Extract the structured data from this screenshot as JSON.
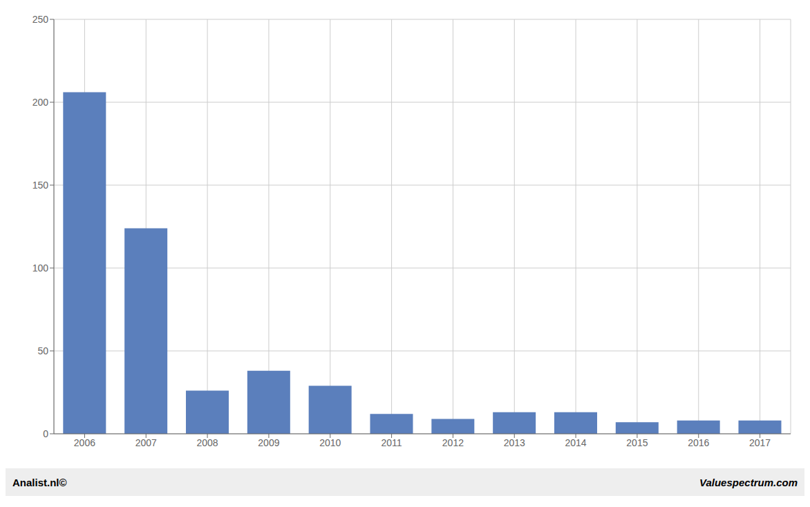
{
  "chart_data": {
    "type": "bar",
    "categories": [
      "2006",
      "2007",
      "2008",
      "2009",
      "2010",
      "2011",
      "2012",
      "2013",
      "2014",
      "2015",
      "2016",
      "2017"
    ],
    "values": [
      206,
      124,
      26,
      38,
      29,
      12,
      9,
      13,
      13,
      7,
      8,
      8
    ],
    "color": "#5b7fbc",
    "ylim": [
      0,
      250
    ],
    "yticks": [
      0,
      50,
      100,
      150,
      200,
      250
    ],
    "grid": true,
    "annotations": [
      "Analist.nl©",
      "Valuespectrum.com"
    ]
  }
}
